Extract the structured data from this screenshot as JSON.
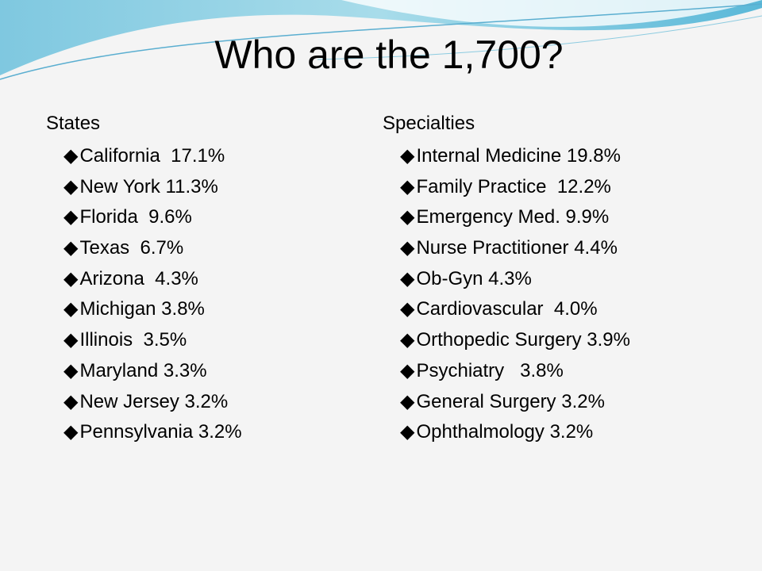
{
  "title": "Who are the 1,700?",
  "columns": [
    {
      "heading": "States",
      "items": [
        "California  17.1%",
        "New York 11.3%",
        "Florida  9.6%",
        "Texas  6.7%",
        "Arizona  4.3%",
        "Michigan 3.8%",
        "Illinois  3.5%",
        "Maryland 3.3%",
        "New Jersey 3.2%",
        "Pennsylvania 3.2%"
      ]
    },
    {
      "heading": "Specialties",
      "items": [
        "Internal Medicine 19.8%",
        "Family Practice  12.2%",
        "Emergency Med. 9.9%",
        "Nurse Practitioner 4.4%",
        "Ob-Gyn 4.3%",
        "Cardiovascular  4.0%",
        "Orthopedic Surgery 3.9%",
        "Psychiatry   3.8%",
        "General Surgery 3.2%",
        "Ophthalmology 3.2%"
      ]
    }
  ]
}
